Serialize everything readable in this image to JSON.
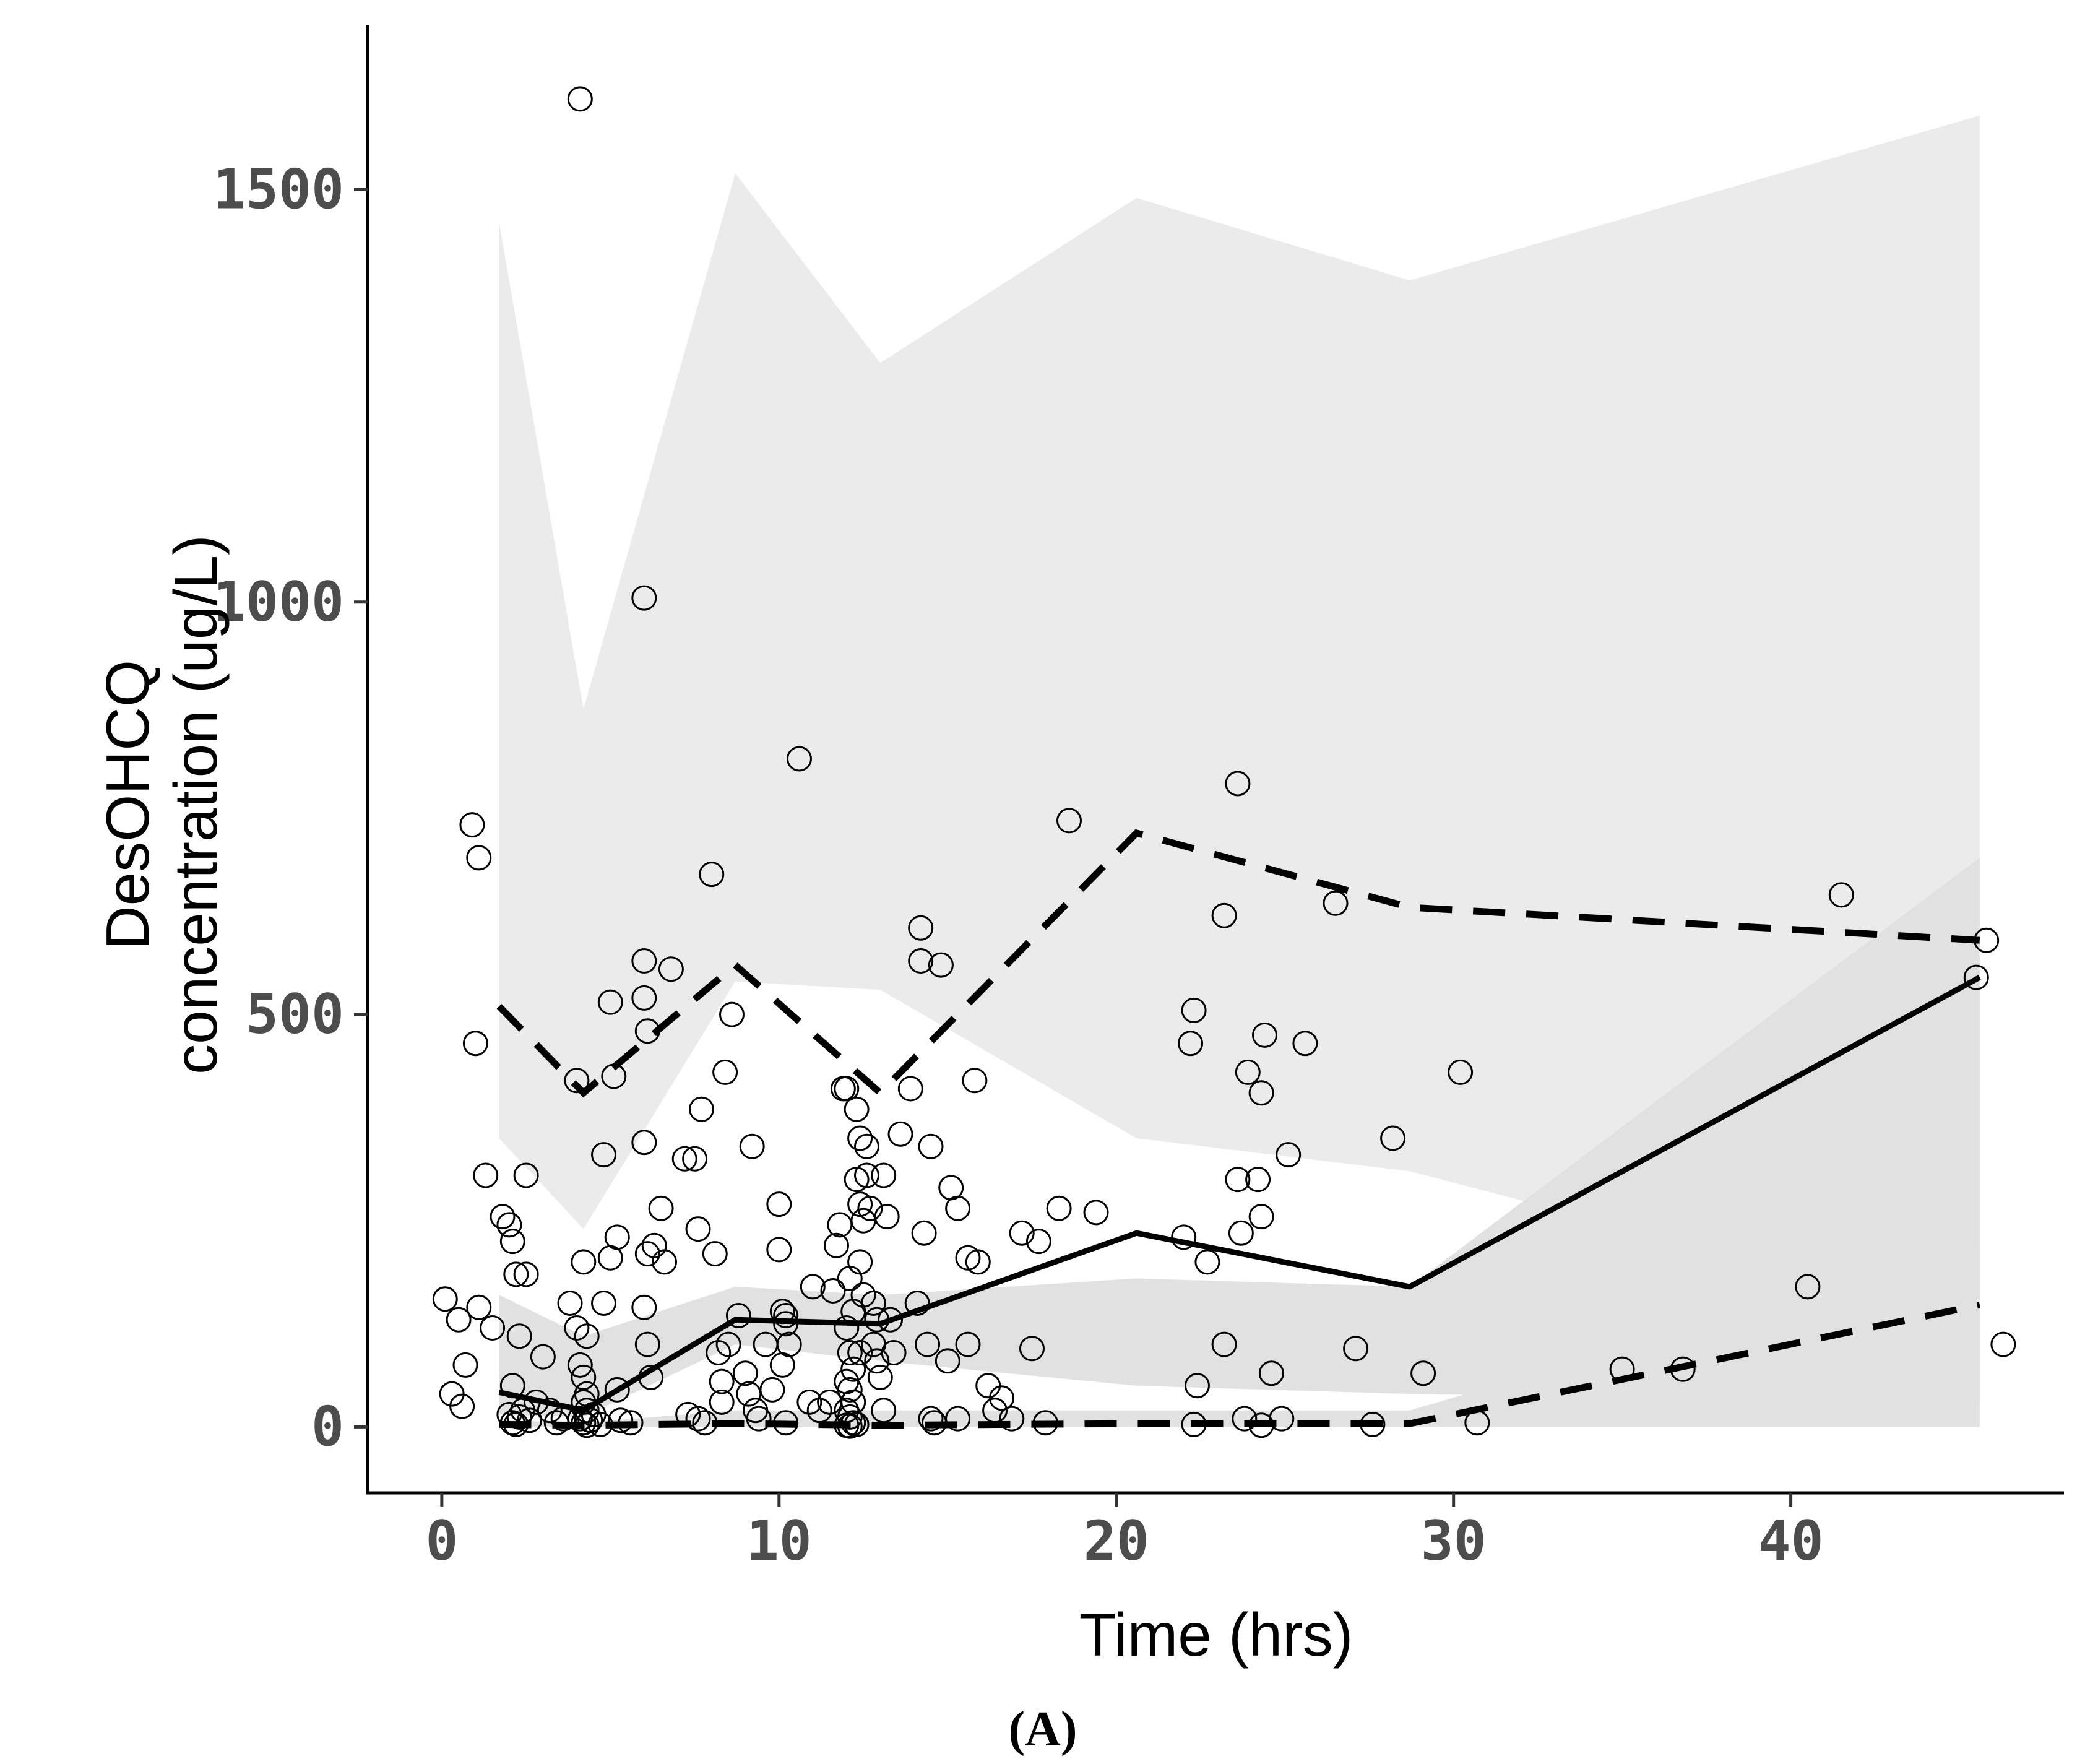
{
  "chart_data": {
    "type": "scatter",
    "title": "",
    "xlabel": "Time (hrs)",
    "ylabel_lines": [
      "DesOHCQ",
      "concentration (ug/L)"
    ],
    "panel_label": "(A)",
    "xlim": [
      -2.2,
      48.1
    ],
    "ylim": [
      -80,
      1700
    ],
    "x_ticks": [
      0,
      10,
      20,
      30,
      40
    ],
    "y_ticks": [
      0,
      500,
      1000,
      1500
    ],
    "bin_times": [
      1.7,
      4.2,
      8.7,
      13.0,
      20.6,
      28.7,
      45.6
    ],
    "upper_band_hi": [
      1460,
      870,
      1520,
      1290,
      1490,
      1390,
      1590
    ],
    "upper_band_lo": [
      350,
      240,
      540,
      530,
      350,
      310,
      130
    ],
    "median_band_hi": [
      160,
      110,
      170,
      160,
      180,
      170,
      690
    ],
    "median_band_lo": [
      15,
      12,
      100,
      80,
      50,
      40,
      30
    ],
    "lower_band_hi": [
      8,
      5,
      20,
      20,
      20,
      20,
      220
    ],
    "observed_median": [
      42,
      20,
      130,
      125,
      235,
      170,
      545
    ],
    "observed_p95": [
      510,
      405,
      560,
      405,
      720,
      630,
      590
    ],
    "observed_p05": [
      3,
      2,
      4,
      2,
      4,
      4,
      148
    ],
    "points": [
      [
        0.1,
        155
      ],
      [
        0.3,
        40
      ],
      [
        0.5,
        130
      ],
      [
        0.6,
        25
      ],
      [
        0.7,
        75
      ],
      [
        0.9,
        730
      ],
      [
        1.1,
        690
      ],
      [
        1.0,
        465
      ],
      [
        1.1,
        145
      ],
      [
        1.3,
        305
      ],
      [
        1.5,
        120
      ],
      [
        1.8,
        255
      ],
      [
        2.0,
        245
      ],
      [
        2.1,
        225
      ],
      [
        2.2,
        185
      ],
      [
        2.3,
        110
      ],
      [
        2.1,
        50
      ],
      [
        2.0,
        15
      ],
      [
        2.1,
        5
      ],
      [
        2.2,
        3
      ],
      [
        2.3,
        12
      ],
      [
        2.4,
        20
      ],
      [
        2.5,
        305
      ],
      [
        2.5,
        185
      ],
      [
        2.6,
        8
      ],
      [
        2.8,
        30
      ],
      [
        3.0,
        85
      ],
      [
        3.2,
        20
      ],
      [
        3.4,
        5
      ],
      [
        3.6,
        10
      ],
      [
        3.8,
        150
      ],
      [
        4.0,
        420
      ],
      [
        4.1,
        1610
      ],
      [
        4.0,
        120
      ],
      [
        4.2,
        200
      ],
      [
        4.3,
        110
      ],
      [
        4.1,
        75
      ],
      [
        4.2,
        60
      ],
      [
        4.3,
        40
      ],
      [
        4.2,
        30
      ],
      [
        4.3,
        20
      ],
      [
        4.1,
        10
      ],
      [
        4.2,
        5
      ],
      [
        4.3,
        2
      ],
      [
        4.4,
        8
      ],
      [
        4.5,
        15
      ],
      [
        4.7,
        3
      ],
      [
        4.8,
        330
      ],
      [
        4.8,
        150
      ],
      [
        5.0,
        515
      ],
      [
        5.1,
        425
      ],
      [
        5.0,
        205
      ],
      [
        5.2,
        230
      ],
      [
        5.2,
        45
      ],
      [
        5.3,
        8
      ],
      [
        5.6,
        5
      ],
      [
        6.0,
        1005
      ],
      [
        6.0,
        565
      ],
      [
        6.0,
        520
      ],
      [
        6.1,
        480
      ],
      [
        6.0,
        345
      ],
      [
        6.1,
        210
      ],
      [
        6.0,
        145
      ],
      [
        6.1,
        100
      ],
      [
        6.2,
        60
      ],
      [
        6.3,
        220
      ],
      [
        6.5,
        265
      ],
      [
        6.6,
        200
      ],
      [
        6.8,
        555
      ],
      [
        7.2,
        325
      ],
      [
        7.3,
        15
      ],
      [
        7.5,
        325
      ],
      [
        7.6,
        10
      ],
      [
        7.6,
        240
      ],
      [
        7.7,
        385
      ],
      [
        7.8,
        5
      ],
      [
        8.0,
        670
      ],
      [
        8.1,
        210
      ],
      [
        8.2,
        90
      ],
      [
        8.3,
        55
      ],
      [
        8.3,
        30
      ],
      [
        8.4,
        430
      ],
      [
        8.5,
        100
      ],
      [
        8.6,
        500
      ],
      [
        8.8,
        135
      ],
      [
        9.0,
        65
      ],
      [
        9.1,
        40
      ],
      [
        9.2,
        340
      ],
      [
        9.3,
        20
      ],
      [
        9.4,
        10
      ],
      [
        9.6,
        100
      ],
      [
        9.8,
        45
      ],
      [
        10.0,
        270
      ],
      [
        10.0,
        215
      ],
      [
        10.1,
        140
      ],
      [
        10.2,
        135
      ],
      [
        10.2,
        125
      ],
      [
        10.3,
        100
      ],
      [
        10.1,
        75
      ],
      [
        10.2,
        5
      ],
      [
        10.6,
        810
      ],
      [
        10.9,
        30
      ],
      [
        11.0,
        170
      ],
      [
        11.2,
        20
      ],
      [
        11.5,
        30
      ],
      [
        11.6,
        165
      ],
      [
        11.7,
        220
      ],
      [
        11.8,
        245
      ],
      [
        11.9,
        410
      ],
      [
        12.0,
        410
      ],
      [
        12.1,
        180
      ],
      [
        12.2,
        140
      ],
      [
        12.0,
        120
      ],
      [
        12.1,
        90
      ],
      [
        12.2,
        70
      ],
      [
        12.0,
        55
      ],
      [
        12.1,
        45
      ],
      [
        12.2,
        30
      ],
      [
        12.0,
        20
      ],
      [
        12.1,
        12
      ],
      [
        12.2,
        5
      ],
      [
        12.3,
        3
      ],
      [
        12.0,
        2
      ],
      [
        12.1,
        1
      ],
      [
        12.3,
        385
      ],
      [
        12.4,
        350
      ],
      [
        12.3,
        300
      ],
      [
        12.4,
        270
      ],
      [
        12.5,
        250
      ],
      [
        12.4,
        200
      ],
      [
        12.5,
        160
      ],
      [
        12.4,
        90
      ],
      [
        12.6,
        340
      ],
      [
        12.6,
        305
      ],
      [
        12.7,
        265
      ],
      [
        12.8,
        150
      ],
      [
        12.9,
        130
      ],
      [
        12.8,
        100
      ],
      [
        12.9,
        80
      ],
      [
        13.0,
        60
      ],
      [
        13.1,
        305
      ],
      [
        13.2,
        255
      ],
      [
        13.3,
        130
      ],
      [
        13.4,
        90
      ],
      [
        13.1,
        20
      ],
      [
        13.6,
        355
      ],
      [
        13.9,
        410
      ],
      [
        14.1,
        150
      ],
      [
        14.2,
        605
      ],
      [
        14.2,
        565
      ],
      [
        14.3,
        235
      ],
      [
        14.4,
        100
      ],
      [
        14.5,
        340
      ],
      [
        14.5,
        10
      ],
      [
        14.6,
        5
      ],
      [
        14.8,
        560
      ],
      [
        15.0,
        80
      ],
      [
        15.1,
        290
      ],
      [
        15.3,
        265
      ],
      [
        15.3,
        10
      ],
      [
        15.6,
        100
      ],
      [
        15.6,
        205
      ],
      [
        15.8,
        420
      ],
      [
        15.9,
        200
      ],
      [
        16.2,
        50
      ],
      [
        16.4,
        20
      ],
      [
        16.6,
        35
      ],
      [
        16.9,
        10
      ],
      [
        17.2,
        235
      ],
      [
        17.5,
        95
      ],
      [
        17.7,
        225
      ],
      [
        17.9,
        5
      ],
      [
        18.3,
        265
      ],
      [
        18.6,
        735
      ],
      [
        19.4,
        260
      ],
      [
        22.0,
        230
      ],
      [
        22.2,
        465
      ],
      [
        22.3,
        505
      ],
      [
        22.3,
        3
      ],
      [
        22.4,
        50
      ],
      [
        22.7,
        200
      ],
      [
        23.2,
        100
      ],
      [
        23.2,
        620
      ],
      [
        23.6,
        780
      ],
      [
        23.6,
        300
      ],
      [
        23.7,
        235
      ],
      [
        23.8,
        10
      ],
      [
        23.9,
        430
      ],
      [
        24.2,
        300
      ],
      [
        24.3,
        255
      ],
      [
        24.3,
        405
      ],
      [
        24.4,
        475
      ],
      [
        24.3,
        2
      ],
      [
        24.6,
        65
      ],
      [
        24.9,
        10
      ],
      [
        25.1,
        330
      ],
      [
        25.6,
        465
      ],
      [
        26.5,
        635
      ],
      [
        27.1,
        95
      ],
      [
        27.6,
        3
      ],
      [
        28.2,
        350
      ],
      [
        29.1,
        65
      ],
      [
        30.2,
        430
      ],
      [
        30.7,
        5
      ],
      [
        35.0,
        70
      ],
      [
        36.8,
        70
      ],
      [
        40.5,
        170
      ],
      [
        41.5,
        645
      ],
      [
        45.5,
        545
      ],
      [
        45.8,
        590
      ],
      [
        46.3,
        100
      ]
    ]
  }
}
